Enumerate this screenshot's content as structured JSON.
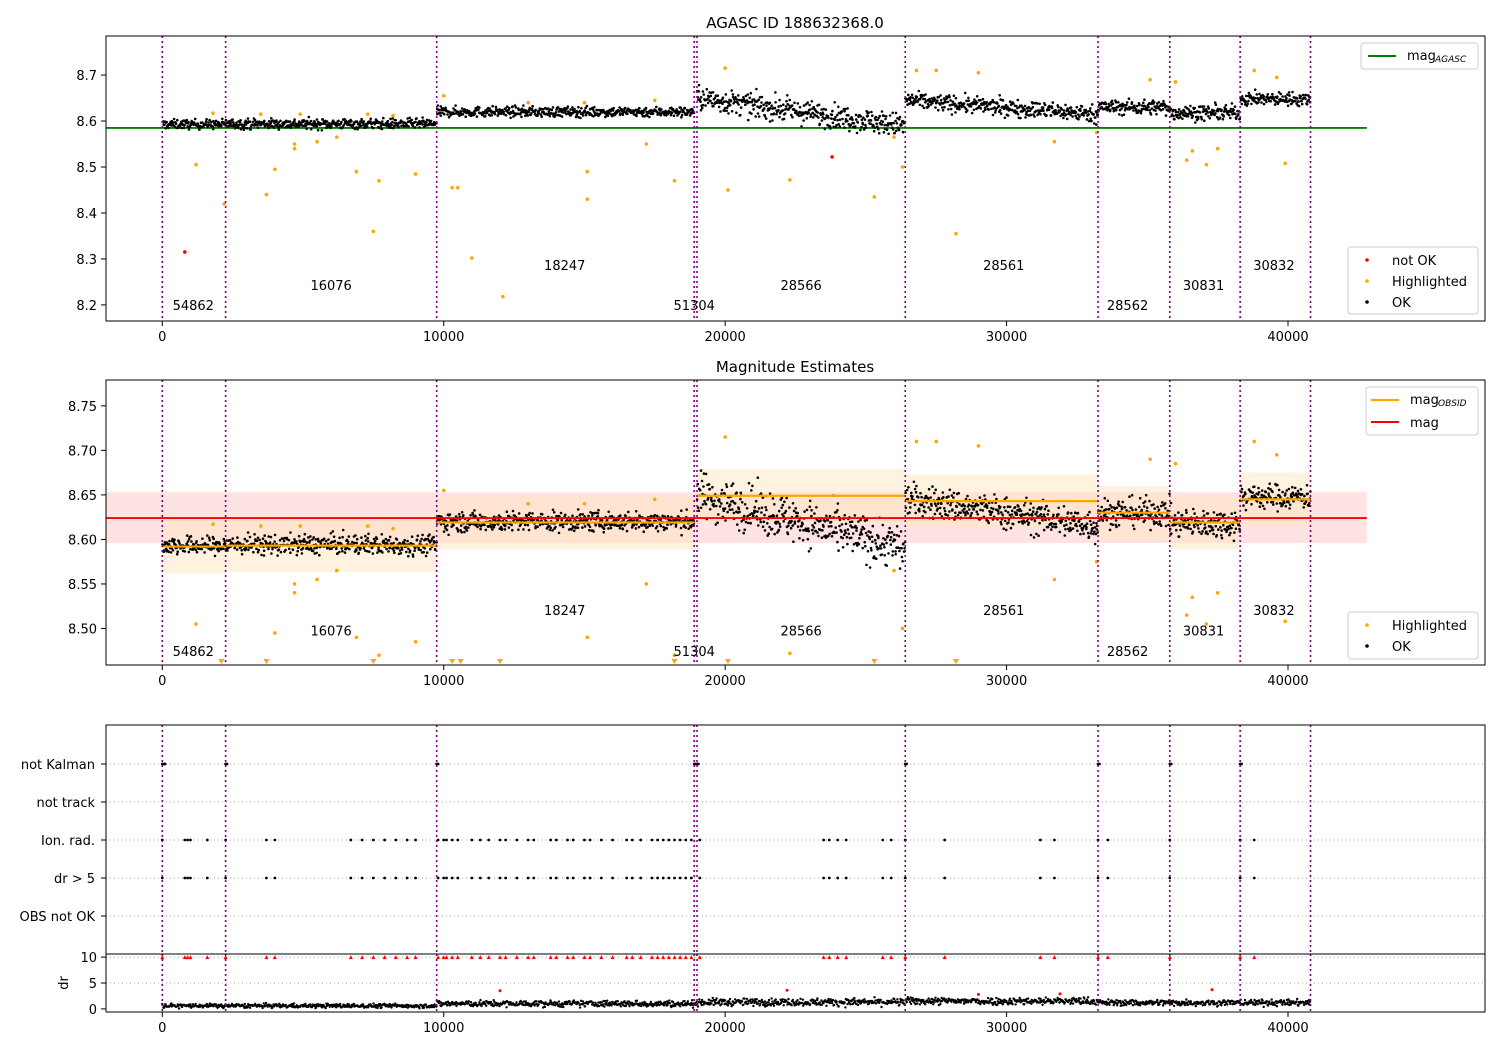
{
  "chart_data": [
    {
      "type": "scatter",
      "title": "AGASC ID 188632368.0",
      "xlim": [
        -2000,
        47000
      ],
      "ylim": [
        8.165,
        8.785
      ],
      "xticks": [
        0,
        10000,
        20000,
        30000,
        40000
      ],
      "yticks": [
        8.2,
        8.3,
        8.4,
        8.5,
        8.6,
        8.7
      ],
      "legend_top": {
        "position": "top-right",
        "entries": [
          {
            "label": "mag",
            "sub": "AGASC",
            "color": "#008000"
          }
        ]
      },
      "legend_bottom": {
        "position": "bottom-right",
        "entries": [
          {
            "label": "not OK",
            "color": "#ff0000"
          },
          {
            "label": "Highlighted",
            "color": "#ffa500"
          },
          {
            "label": "OK",
            "color": "#000000"
          }
        ]
      },
      "hline": {
        "value": 8.585,
        "x_end": 42800,
        "color": "#008000"
      },
      "obsid_boundaries": [
        0,
        2250,
        9750,
        18900,
        19000,
        26400,
        33250,
        35800,
        38300,
        40800
      ],
      "obsid_labels": [
        {
          "text": "54862",
          "x": 1100,
          "y": 8.2
        },
        {
          "text": "16076",
          "x": 6000,
          "y": 8.243
        },
        {
          "text": "18247",
          "x": 14300,
          "y": 8.287
        },
        {
          "text": "51304",
          "x": 18900,
          "y": 8.2
        },
        {
          "text": "28566",
          "x": 22700,
          "y": 8.243
        },
        {
          "text": "28561",
          "x": 29900,
          "y": 8.287
        },
        {
          "text": "28562",
          "x": 34300,
          "y": 8.2
        },
        {
          "text": "30831",
          "x": 37000,
          "y": 8.243
        },
        {
          "text": "30832",
          "x": 39500,
          "y": 8.287
        }
      ],
      "ok_segments": [
        {
          "x0": 0,
          "x1": 2250,
          "center": 8.593,
          "spread": 0.01
        },
        {
          "x0": 2250,
          "x1": 9750,
          "center": 8.594,
          "spread": 0.011
        },
        {
          "x0": 9750,
          "x1": 18900,
          "center": 8.62,
          "spread": 0.011
        },
        {
          "x0": 19000,
          "x1": 26400,
          "center": 8.65,
          "spread": 0.025
        },
        {
          "x0": 26400,
          "x1": 33250,
          "center": 8.645,
          "spread": 0.018
        },
        {
          "x0": 33250,
          "x1": 35800,
          "center": 8.63,
          "spread": 0.016
        },
        {
          "x0": 35800,
          "x1": 38300,
          "center": 8.618,
          "spread": 0.016
        },
        {
          "x0": 38300,
          "x1": 40800,
          "center": 8.648,
          "spread": 0.014
        }
      ],
      "highlighted_points": [
        [
          1200,
          8.505
        ],
        [
          2200,
          8.42
        ],
        [
          3700,
          8.44
        ],
        [
          4000,
          8.495
        ],
        [
          4700,
          8.54
        ],
        [
          4700,
          8.55
        ],
        [
          5500,
          8.555
        ],
        [
          6200,
          8.565
        ],
        [
          6900,
          8.49
        ],
        [
          7500,
          8.36
        ],
        [
          7700,
          8.47
        ],
        [
          9000,
          8.485
        ],
        [
          10300,
          8.455
        ],
        [
          10500,
          8.455
        ],
        [
          11000,
          8.302
        ],
        [
          12100,
          8.218
        ],
        [
          15100,
          8.43
        ],
        [
          15100,
          8.49
        ],
        [
          17200,
          8.55
        ],
        [
          18200,
          8.47
        ],
        [
          20100,
          8.45
        ],
        [
          22300,
          8.472
        ],
        [
          25300,
          8.435
        ],
        [
          26000,
          8.565
        ],
        [
          26300,
          8.5
        ],
        [
          28200,
          8.355
        ],
        [
          31700,
          8.555
        ],
        [
          36400,
          8.515
        ],
        [
          36600,
          8.535
        ],
        [
          37100,
          8.505
        ],
        [
          37500,
          8.54
        ],
        [
          39900,
          8.508
        ],
        [
          1800,
          8.617
        ],
        [
          3500,
          8.615
        ],
        [
          4900,
          8.615
        ],
        [
          7300,
          8.615
        ],
        [
          8200,
          8.612
        ],
        [
          10000,
          8.655
        ],
        [
          13000,
          8.64
        ],
        [
          15000,
          8.64
        ],
        [
          17500,
          8.645
        ],
        [
          20000,
          8.715
        ],
        [
          26800,
          8.71
        ],
        [
          27500,
          8.71
        ],
        [
          29000,
          8.705
        ],
        [
          35100,
          8.69
        ],
        [
          36000,
          8.685
        ],
        [
          38800,
          8.71
        ],
        [
          39600,
          8.695
        ],
        [
          33200,
          8.575
        ]
      ],
      "not_ok_points": [
        [
          800,
          8.315
        ],
        [
          23800,
          8.522
        ]
      ]
    },
    {
      "type": "scatter",
      "title": "Magnitude Estimates",
      "xlim": [
        -2000,
        47000
      ],
      "ylim": [
        8.459,
        8.779
      ],
      "xticks": [
        0,
        10000,
        20000,
        30000,
        40000
      ],
      "yticks": [
        8.5,
        8.55,
        8.6,
        8.65,
        8.7,
        8.75
      ],
      "legend_top": {
        "position": "top-right",
        "entries": [
          {
            "label": "mag",
            "sub": "OBSID",
            "color": "#ffa500"
          },
          {
            "label": "mag",
            "color": "#ff0000"
          }
        ]
      },
      "legend_bottom": {
        "position": "bottom-right",
        "entries": [
          {
            "label": "Highlighted",
            "color": "#ffa500"
          },
          {
            "label": "OK",
            "color": "#000000"
          }
        ]
      },
      "mean_mag": 8.624,
      "mean_band": [
        8.596,
        8.653
      ],
      "mean_x_end": 42800,
      "obsid_mags": [
        {
          "x0": 0,
          "x1": 2250,
          "mag": 8.592
        },
        {
          "x0": 2250,
          "x1": 9750,
          "mag": 8.593
        },
        {
          "x0": 9750,
          "x1": 18900,
          "mag": 8.619
        },
        {
          "x0": 19000,
          "x1": 26400,
          "mag": 8.649
        },
        {
          "x0": 26400,
          "x1": 33250,
          "mag": 8.643
        },
        {
          "x0": 33250,
          "x1": 35800,
          "mag": 8.63
        },
        {
          "x0": 35800,
          "x1": 38300,
          "mag": 8.619
        },
        {
          "x0": 38300,
          "x1": 40800,
          "mag": 8.645
        }
      ],
      "obsid_labels": [
        {
          "text": "54862",
          "x": 1100,
          "y": 8.475
        },
        {
          "text": "16076",
          "x": 6000,
          "y": 8.498
        },
        {
          "text": "18247",
          "x": 14300,
          "y": 8.521
        },
        {
          "text": "51304",
          "x": 18900,
          "y": 8.475
        },
        {
          "text": "28566",
          "x": 22700,
          "y": 8.498
        },
        {
          "text": "28561",
          "x": 29900,
          "y": 8.521
        },
        {
          "text": "28562",
          "x": 34300,
          "y": 8.475
        },
        {
          "text": "30831",
          "x": 37000,
          "y": 8.498
        },
        {
          "text": "30832",
          "x": 39500,
          "y": 8.521
        }
      ],
      "below_range_markers": [
        2100,
        3700,
        7500,
        10300,
        10600,
        12000,
        18200,
        20100,
        25300,
        28200
      ]
    },
    {
      "type": "scatter",
      "title": "",
      "xlim": [
        -2000,
        47000
      ],
      "flag_labels": [
        "not Kalman",
        "not track",
        "Ion. rad.",
        "dr > 5",
        "OBS not OK"
      ],
      "flag_x": {
        "not Kalman": [
          0,
          50,
          100,
          2250,
          2300,
          9750,
          9800,
          18900,
          18950,
          19000,
          19050,
          26400,
          26450,
          33250,
          33300,
          35800,
          35850,
          38300,
          38350
        ],
        "not track": [],
        "Ion. rad.": [
          0,
          800,
          900,
          1000,
          1600,
          2250,
          3700,
          4000,
          6700,
          7100,
          7500,
          7900,
          8300,
          8700,
          9000,
          9800,
          10000,
          10100,
          10300,
          10500,
          11000,
          11300,
          11600,
          12000,
          12200,
          12600,
          13000,
          13200,
          13800,
          14000,
          14400,
          14600,
          15000,
          15200,
          15600,
          16000,
          16500,
          16700,
          17000,
          17400,
          17600,
          17800,
          18000,
          18200,
          18400,
          18600,
          18800,
          19100,
          23500,
          23700,
          24000,
          24300,
          25600,
          25900,
          26400,
          27800,
          31200,
          31700,
          33250,
          33600,
          35800,
          38300,
          38800
        ],
        "dr > 5": [
          0,
          800,
          900,
          1000,
          1600,
          2250,
          3700,
          4000,
          6700,
          7100,
          7500,
          7900,
          8300,
          8700,
          9000,
          9800,
          10000,
          10100,
          10300,
          10500,
          11000,
          11300,
          11600,
          12000,
          12200,
          12600,
          13000,
          13200,
          13800,
          14000,
          14400,
          14600,
          15000,
          15200,
          15600,
          16000,
          16500,
          16700,
          17000,
          17400,
          17600,
          17800,
          18000,
          18200,
          18400,
          18600,
          18800,
          19100,
          23500,
          23700,
          24000,
          24300,
          25600,
          25900,
          26400,
          27800,
          31200,
          31700,
          33250,
          33600,
          35800,
          38300,
          38800
        ],
        "OBS not OK": []
      }
    },
    {
      "type": "scatter",
      "title": "",
      "xlim": [
        -2000,
        47000
      ],
      "ylim": [
        -0.6,
        10.6
      ],
      "ylabel": "dr",
      "yticks": [
        0,
        5,
        10
      ],
      "xticks": [
        0,
        10000,
        20000,
        30000,
        40000
      ],
      "clipped_at": 10,
      "segments": [
        {
          "x0": 0,
          "x1": 9750,
          "center": 0.6,
          "spread": 0.4
        },
        {
          "x0": 9750,
          "x1": 19000,
          "center": 1.0,
          "spread": 0.6
        },
        {
          "x0": 19000,
          "x1": 26400,
          "center": 1.3,
          "spread": 0.7
        },
        {
          "x0": 26400,
          "x1": 33250,
          "center": 1.5,
          "spread": 0.7
        },
        {
          "x0": 33250,
          "x1": 40800,
          "center": 1.2,
          "spread": 0.6
        }
      ],
      "outliers": [
        [
          12000,
          3.5
        ],
        [
          22200,
          3.6
        ],
        [
          29000,
          2.8
        ],
        [
          31900,
          2.9
        ],
        [
          37300,
          3.7
        ]
      ]
    }
  ],
  "colors": {
    "ok": "#000000",
    "highlighted": "#ffa500",
    "not_ok": "#ff0000",
    "agasc": "#008000",
    "obsid_mag": "#ffa500",
    "mag": "#ff0000",
    "boundary": "#800080",
    "band": "#ffdddd"
  }
}
